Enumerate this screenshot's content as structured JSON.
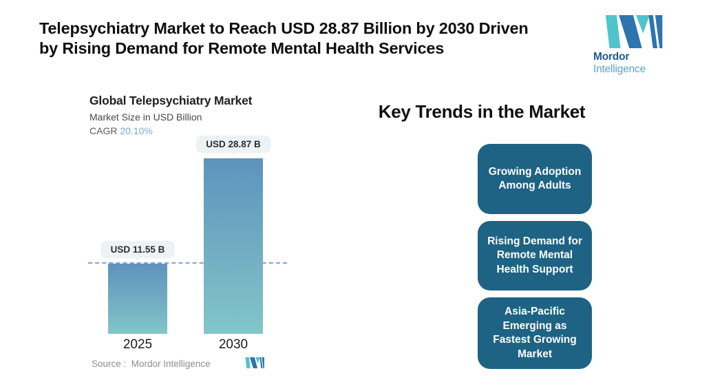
{
  "header": {
    "title": "Telepsychiatry Market to Reach USD 28.87 Billion by 2030 Driven\nby Rising Demand for Remote Mental Health Services",
    "logo": {
      "icon": "mordor-m-mark",
      "text_bold": "Mordor",
      "text_light": "Intelligence"
    }
  },
  "chart_data": {
    "type": "bar",
    "title": "Global Telepsychiatry Market",
    "subtitle": "Market Size in USD Billion",
    "cagr_label": "CAGR",
    "cagr_value": "20.10%",
    "categories": [
      "2025",
      "2030"
    ],
    "values": [
      11.55,
      28.87
    ],
    "value_labels": [
      "USD 11.55 B",
      "USD 28.87 B"
    ],
    "unit": "USD Billion",
    "ylim": [
      0,
      28.87
    ],
    "reference_line": 11.55,
    "grid": false,
    "legend": false,
    "source": "Source :  Mordor Intelligence"
  },
  "trends": {
    "heading": "Key Trends in the Market",
    "items": [
      "Growing Adoption\nAmong Adults",
      "Rising Demand for\nRemote Mental\nHealth Support",
      "Asia-Pacific\nEmerging as\nFastest Growing\nMarket"
    ]
  },
  "colors": {
    "trend_box": "#1e6384",
    "bar_top": "#5d93bd",
    "bar_bottom": "#82c6ca",
    "reference_line": "#7ca6d6",
    "cagr_value": "#7aa7cf",
    "logo_teal": "#4fc4cc",
    "logo_blue": "#2e74ae",
    "callout_bg": "#edf2f4"
  }
}
